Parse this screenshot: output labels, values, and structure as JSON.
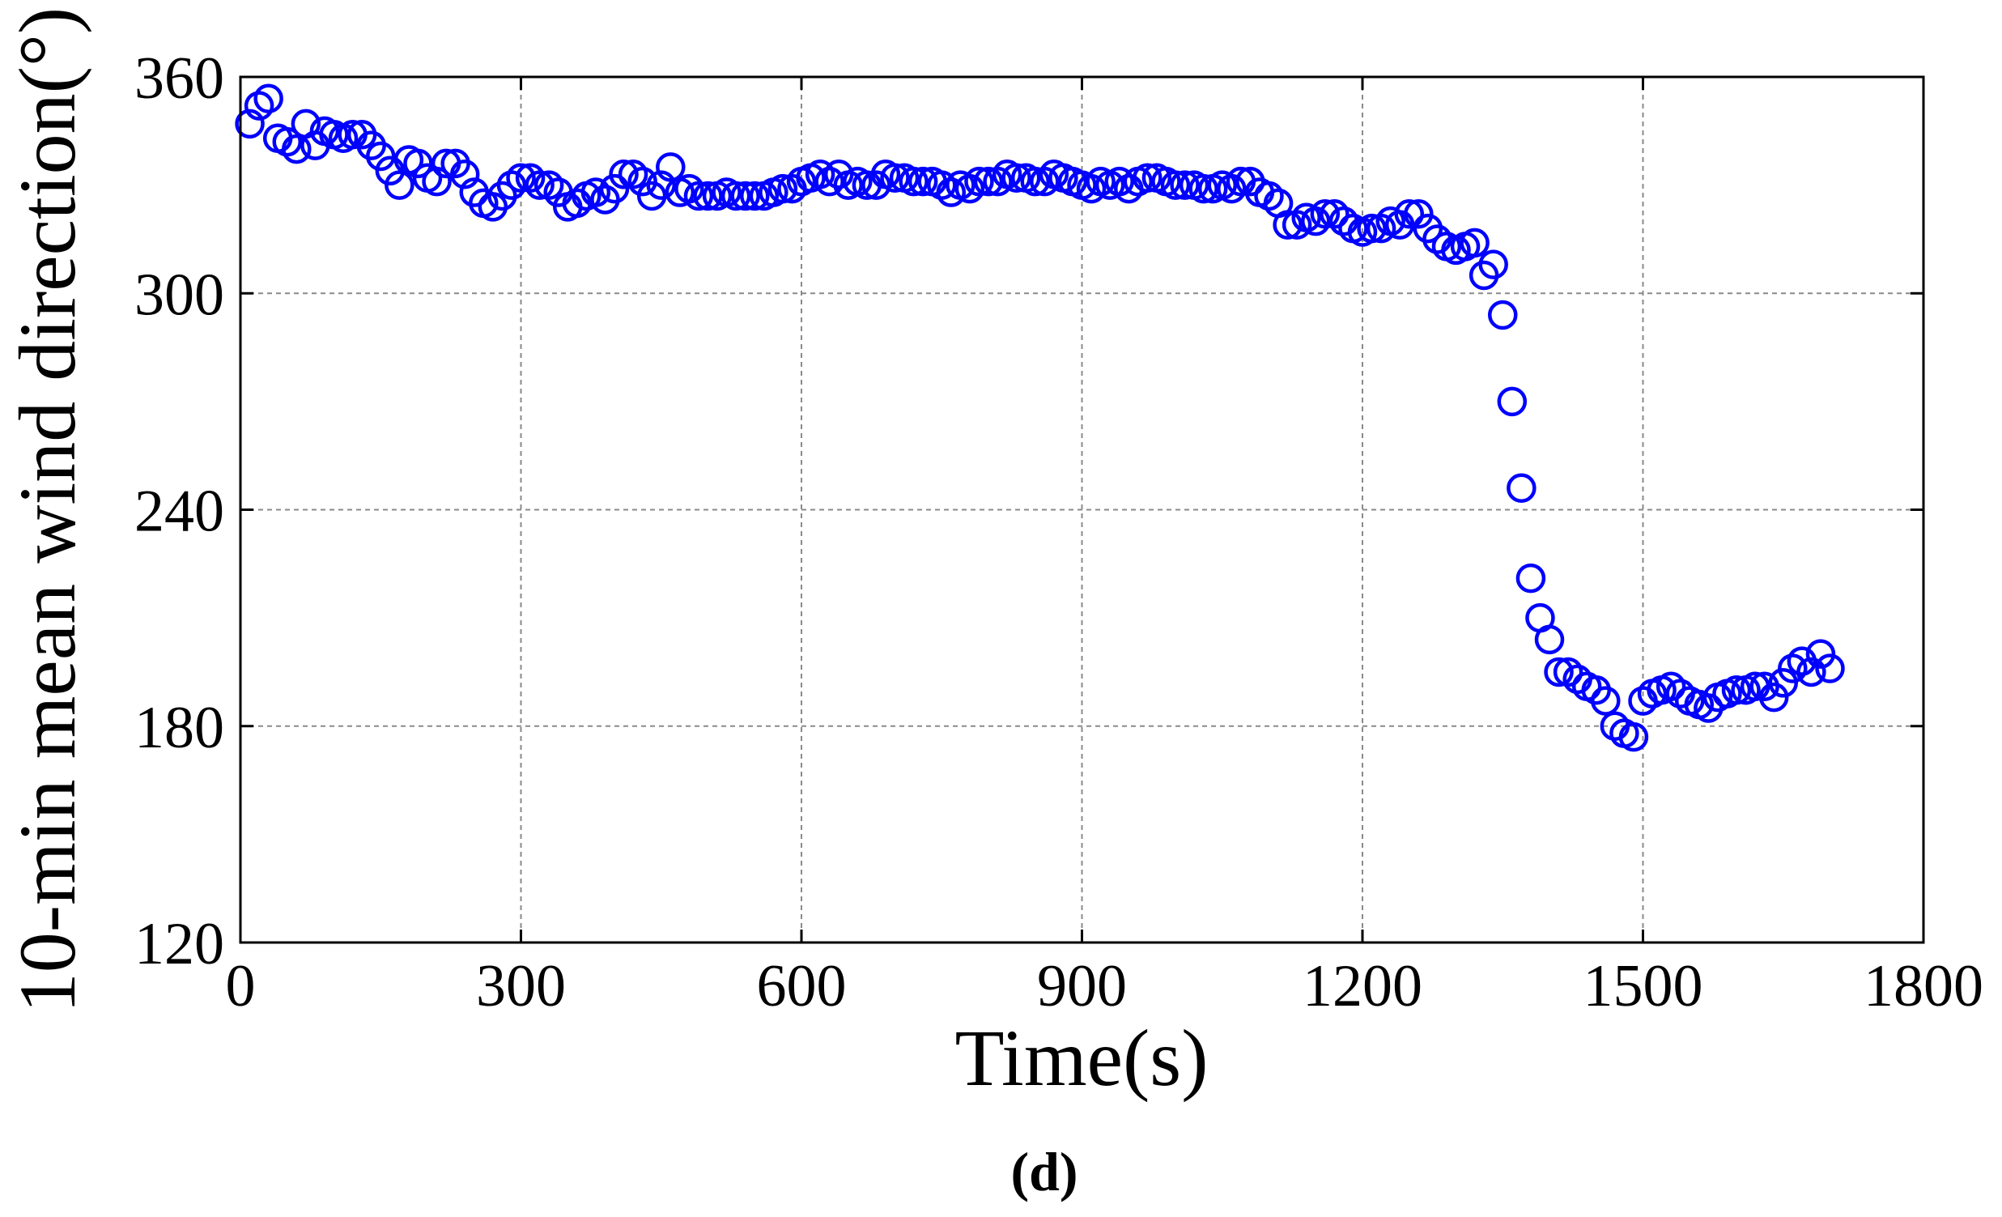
{
  "chart_data": {
    "type": "scatter",
    "xlabel": "Time(s)",
    "ylabel": "10-min mean wind direction(°)",
    "caption": "(d)",
    "xlim": [
      0,
      1800
    ],
    "ylim": [
      120,
      360
    ],
    "xticks": [
      0,
      300,
      600,
      900,
      1200,
      1500,
      1800
    ],
    "yticks": [
      120,
      180,
      240,
      300,
      360
    ],
    "grid": true,
    "marker": "open-circle",
    "color": "#0000ff",
    "series": [
      {
        "x": [
          10,
          20,
          30,
          40,
          50,
          60,
          70,
          80,
          90,
          100,
          110,
          120,
          130,
          140,
          150,
          160,
          170,
          180,
          190,
          200,
          210,
          220,
          230,
          240,
          250,
          260,
          270,
          280,
          290,
          300,
          310,
          320,
          330,
          340,
          350,
          360,
          370,
          380,
          390,
          400,
          410,
          420,
          430,
          440,
          450,
          460,
          470,
          480,
          490,
          500,
          510,
          520,
          530,
          540,
          550,
          560,
          570,
          580,
          590,
          600,
          610,
          620,
          630,
          640,
          650,
          660,
          670,
          680,
          690,
          700,
          710,
          720,
          730,
          740,
          750,
          760,
          770,
          780,
          790,
          800,
          810,
          820,
          830,
          840,
          850,
          860,
          870,
          880,
          890,
          900,
          910,
          920,
          930,
          940,
          950,
          960,
          970,
          980,
          990,
          1000,
          1010,
          1020,
          1030,
          1040,
          1050,
          1060,
          1070,
          1080,
          1090,
          1100,
          1110,
          1120,
          1130,
          1140,
          1150,
          1160,
          1170,
          1180,
          1190,
          1200,
          1210,
          1220,
          1230,
          1240,
          1250,
          1260,
          1270,
          1280,
          1290,
          1300,
          1310,
          1320,
          1330,
          1340,
          1350,
          1360,
          1370,
          1380,
          1390,
          1400,
          1410,
          1420,
          1430,
          1440,
          1450,
          1460,
          1470,
          1480,
          1490,
          1500,
          1510,
          1520,
          1530,
          1540,
          1550,
          1560,
          1570,
          1580,
          1590,
          1600,
          1610,
          1620,
          1630,
          1640,
          1650,
          1660,
          1670,
          1680,
          1690,
          1700
        ],
        "y": [
          347,
          352,
          354,
          343,
          342,
          340,
          347,
          341,
          345,
          344,
          343,
          344,
          344,
          341,
          338,
          334,
          330,
          337,
          336,
          332,
          331,
          336,
          336,
          333,
          328,
          325,
          324,
          327,
          330,
          332,
          332,
          330,
          330,
          328,
          324,
          325,
          327,
          328,
          326,
          329,
          333,
          333,
          331,
          327,
          330,
          335,
          328,
          329,
          327,
          327,
          327,
          328,
          327,
          327,
          327,
          327,
          328,
          329,
          329,
          331,
          332,
          333,
          331,
          333,
          330,
          331,
          330,
          330,
          333,
          332,
          332,
          331,
          331,
          331,
          330,
          328,
          330,
          329,
          331,
          331,
          331,
          333,
          332,
          332,
          331,
          331,
          333,
          332,
          331,
          330,
          329,
          331,
          330,
          331,
          329,
          331,
          332,
          332,
          331,
          330,
          330,
          330,
          329,
          329,
          330,
          329,
          331,
          331,
          328,
          327,
          325,
          319,
          319,
          321,
          320,
          322,
          322,
          320,
          318,
          317,
          318,
          318,
          320,
          319,
          322,
          322,
          318,
          315,
          313,
          312,
          313,
          314,
          305,
          308,
          294,
          270,
          246,
          221,
          210,
          204,
          195,
          195,
          193,
          191,
          190,
          187,
          180,
          178,
          177,
          187,
          189,
          190,
          191,
          189,
          187,
          186,
          185,
          188,
          189,
          190,
          190,
          191,
          191,
          188,
          192,
          196,
          198,
          195,
          200,
          196
        ]
      }
    ]
  }
}
